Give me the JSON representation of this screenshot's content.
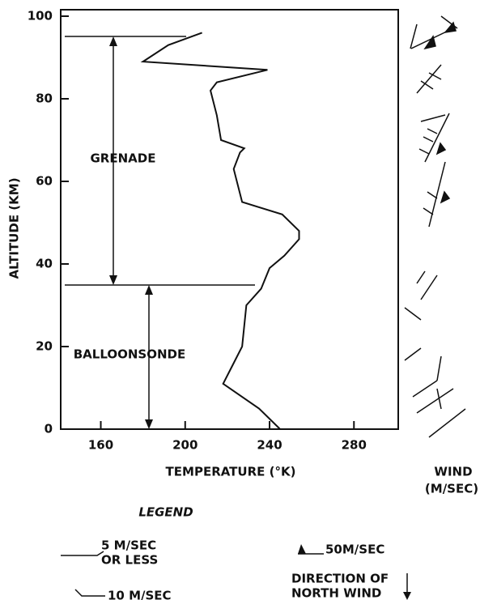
{
  "chart_data": {
    "type": "line",
    "xlabel": "TEMPERATURE (°K)",
    "ylabel": "ALTITUDE (KM)",
    "x": [
      245,
      235,
      218,
      222,
      227,
      228,
      229,
      236,
      240,
      247,
      254,
      254,
      246,
      227,
      223,
      226,
      228,
      217,
      215,
      212,
      215,
      239,
      180,
      192,
      208
    ],
    "values": [
      0,
      5,
      11,
      15,
      20,
      25,
      30,
      34,
      39,
      42,
      46,
      48,
      52,
      55,
      63,
      67,
      68,
      70,
      76,
      82,
      84,
      87,
      89,
      93,
      96
    ],
    "color": "#111111",
    "xlim": [
      141,
      301
    ],
    "xticks": [
      160,
      200,
      240,
      280
    ],
    "ylim": [
      0,
      100
    ],
    "yticks": [
      0,
      20,
      40,
      60,
      80,
      100
    ],
    "annotations": [
      "GRENADE",
      "BALLOONSONDE"
    ],
    "wind_label": [
      "WIND",
      "(M/SEC)"
    ],
    "legend": {
      "title": "LEGEND",
      "items": [
        [
          "5 M/SEC",
          "OR LESS"
        ],
        [
          "10 M/SEC"
        ],
        [
          "50M/SEC"
        ],
        [
          "DIRECTION OF",
          "NORTH WIND"
        ]
      ]
    }
  }
}
